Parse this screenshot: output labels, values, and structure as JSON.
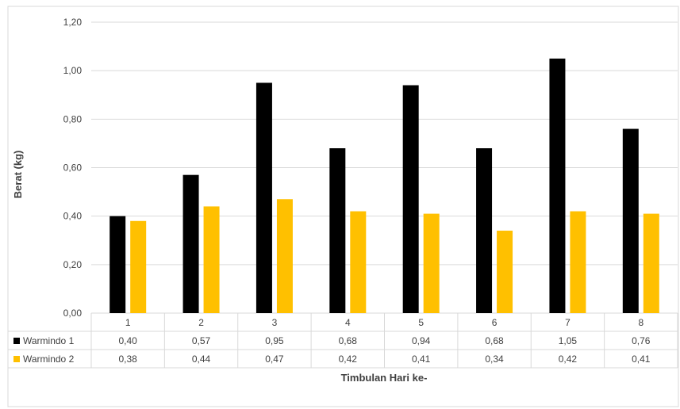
{
  "chart_data": {
    "type": "bar",
    "categories": [
      "1",
      "2",
      "3",
      "4",
      "5",
      "6",
      "7",
      "8"
    ],
    "series": [
      {
        "name": "Warmindo 1",
        "values": [
          0.4,
          0.57,
          0.95,
          0.68,
          0.94,
          0.68,
          1.05,
          0.76
        ],
        "labels": [
          "0,40",
          "0,57",
          "0,95",
          "0,68",
          "0,94",
          "0,68",
          "1,05",
          "0,76"
        ],
        "color": "#000000"
      },
      {
        "name": "Warmindo 2",
        "values": [
          0.38,
          0.44,
          0.47,
          0.42,
          0.41,
          0.34,
          0.42,
          0.41
        ],
        "labels": [
          "0,38",
          "0,44",
          "0,47",
          "0,42",
          "0,41",
          "0,34",
          "0,42",
          "0,41"
        ],
        "color": "#FFC000"
      }
    ],
    "y_ticks": [
      "0,00",
      "0,20",
      "0,40",
      "0,60",
      "0,80",
      "1,00",
      "1,20"
    ],
    "ylim": [
      0,
      1.2
    ],
    "ylabel": "Berat (kg)",
    "xlabel": "Timbulan Hari ke-",
    "grid": true,
    "legend": "data-table"
  }
}
